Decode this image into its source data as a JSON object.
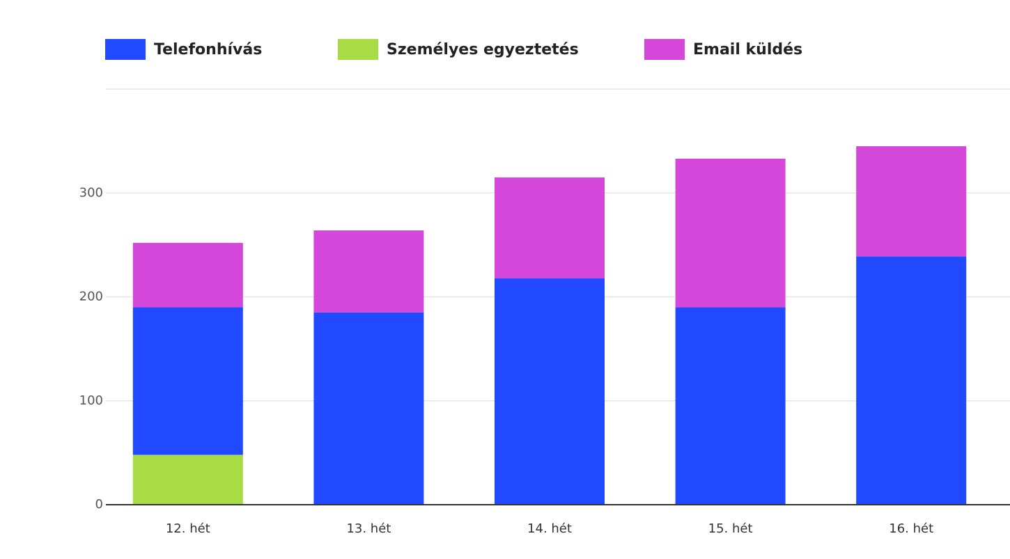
{
  "chart_data": {
    "type": "bar",
    "stacked": true,
    "categories": [
      "12. hét",
      "13. hét",
      "14. hét",
      "15. hét",
      "16. hét"
    ],
    "series": [
      {
        "name": "Személyes egyeztetés",
        "color": "#a8dc45",
        "values": [
          48,
          0,
          0,
          0,
          0
        ]
      },
      {
        "name": "Telefonhívás",
        "color": "#2149ff",
        "values": [
          142,
          185,
          218,
          190,
          239
        ]
      },
      {
        "name": "Email küldés",
        "color": "#d547db",
        "values": [
          62,
          79,
          97,
          143,
          106
        ]
      }
    ],
    "legend_order": [
      "Telefonhívás",
      "Személyes egyeztetés",
      "Email küldés"
    ],
    "legend_position": "top",
    "ylim": [
      0,
      400
    ],
    "yticks": [
      0,
      100,
      200,
      300
    ],
    "grid": true,
    "title": "",
    "xlabel": "",
    "ylabel": ""
  }
}
